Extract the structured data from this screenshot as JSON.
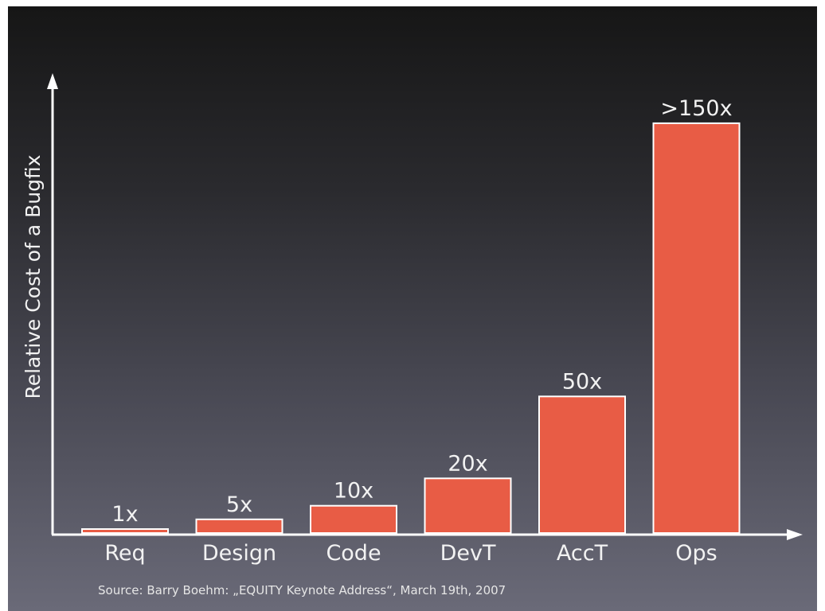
{
  "chart_data": {
    "type": "bar",
    "title": "",
    "ylabel": "Relative Cost of a Bugfix",
    "xlabel": "",
    "categories": [
      "Req",
      "Design",
      "Code",
      "DevT",
      "AccT",
      "Ops"
    ],
    "values": [
      1,
      5,
      10,
      20,
      50,
      150
    ],
    "value_labels": [
      "1x",
      "5x",
      "10x",
      "20x",
      "50x",
      ">150x"
    ],
    "ylim": [
      0,
      166
    ],
    "grid": false,
    "bar_color": "#e85c45",
    "bar_outline_color": "#ffffff",
    "axis_color": "#ffffff",
    "source": "Source: Barry Boehm: „EQUITY Keynote Address“, March 19th, 2007"
  }
}
